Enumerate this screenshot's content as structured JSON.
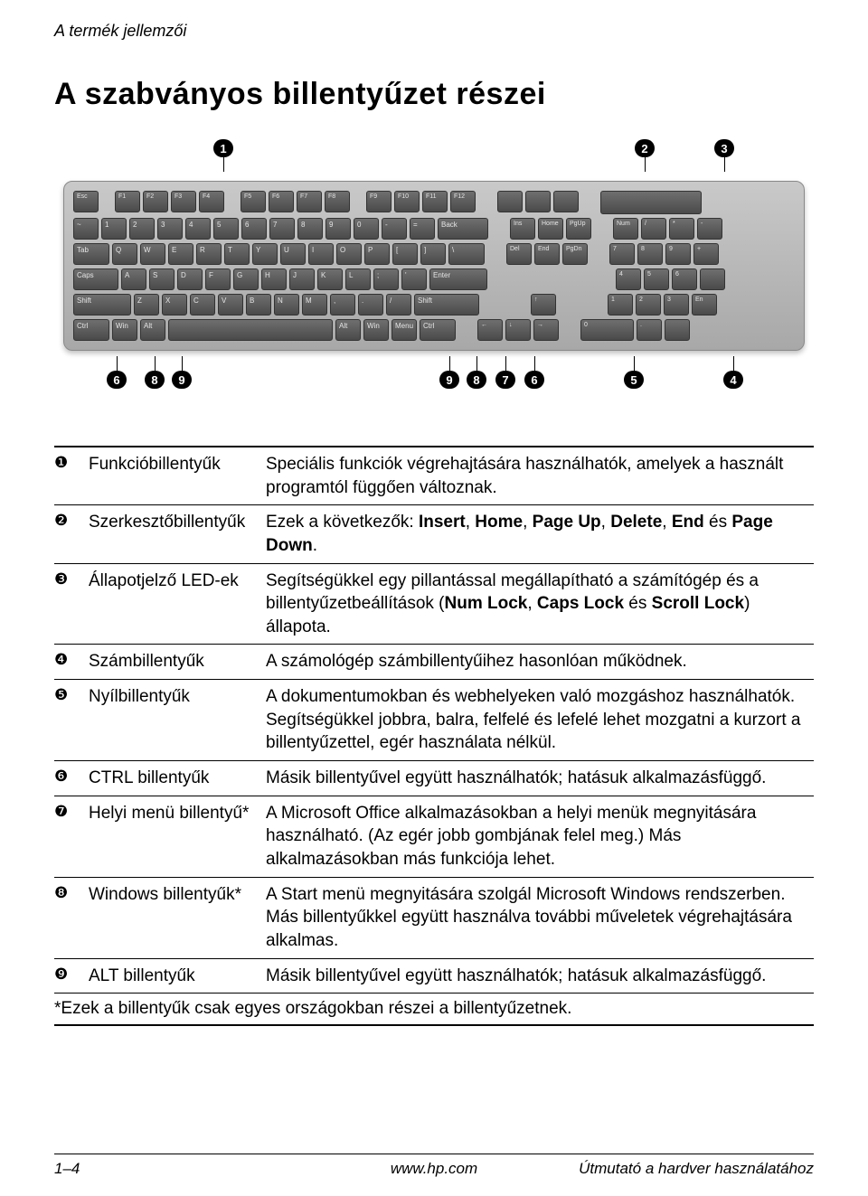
{
  "header": "A termék jellemzői",
  "title": "A szabványos billentyűzet részei",
  "diagram": {
    "top_callouts": [
      "1",
      "2",
      "3"
    ],
    "bottom_callouts": [
      "6",
      "8",
      "9",
      "9",
      "8",
      "7",
      "6",
      "5",
      "4"
    ],
    "colors": {
      "keyboard_bg_top": "#c9c9c9",
      "keyboard_bg_bottom": "#a8a8a8",
      "key_bg_top": "#6f6f6f",
      "key_bg_bottom": "#4a4a4a",
      "key_border": "#333333",
      "bubble_bg": "#000000",
      "bubble_fg": "#ffffff"
    },
    "rows": {
      "fn": [
        "Esc",
        "F1",
        "F2",
        "F3",
        "F4",
        "F5",
        "F6",
        "F7",
        "F8",
        "F9",
        "F10",
        "F11",
        "F12"
      ],
      "r1": [
        "~",
        "1",
        "2",
        "3",
        "4",
        "5",
        "6",
        "7",
        "8",
        "9",
        "0",
        "-",
        "=",
        "Back"
      ],
      "r2": [
        "Tab",
        "Q",
        "W",
        "E",
        "R",
        "T",
        "Y",
        "U",
        "I",
        "O",
        "P",
        "[",
        "]",
        "\\"
      ],
      "r3": [
        "Caps",
        "A",
        "S",
        "D",
        "F",
        "G",
        "H",
        "J",
        "K",
        "L",
        ";",
        "'",
        "Enter"
      ],
      "r4": [
        "Shift",
        "Z",
        "X",
        "C",
        "V",
        "B",
        "N",
        "M",
        ",",
        ".",
        "/",
        "Shift"
      ],
      "r5": [
        "Ctrl",
        "Win",
        "Alt",
        "",
        "Alt",
        "Win",
        "Menu",
        "Ctrl"
      ],
      "nav1": [
        "Ins",
        "Home",
        "PgUp"
      ],
      "nav2": [
        "Del",
        "End",
        "PgDn"
      ],
      "arr": [
        "←",
        "↑",
        "↓",
        "→"
      ],
      "num1": [
        "Num",
        "/",
        "*",
        "-"
      ],
      "num2": [
        "7",
        "8",
        "9",
        "+"
      ],
      "num3": [
        "4",
        "5",
        "6"
      ],
      "num4": [
        "1",
        "2",
        "3",
        "En"
      ],
      "num5": [
        "0",
        ".",
        ""
      ]
    }
  },
  "table": {
    "rows": [
      {
        "num": "❶",
        "name": "Funkcióbillentyűk",
        "desc_parts": [
          {
            "t": "Speciális funkciók végrehajtására használhatók, amelyek a használt programtól függően változnak."
          }
        ]
      },
      {
        "num": "❷",
        "name": "Szerkesztőbillentyűk",
        "desc_parts": [
          {
            "t": "Ezek a következők: "
          },
          {
            "b": "Insert"
          },
          {
            "t": ", "
          },
          {
            "b": "Home"
          },
          {
            "t": ", "
          },
          {
            "b": "Page Up"
          },
          {
            "t": ", "
          },
          {
            "b": "Delete"
          },
          {
            "t": ", "
          },
          {
            "b": "End"
          },
          {
            "t": " és "
          },
          {
            "b": "Page Down"
          },
          {
            "t": "."
          }
        ]
      },
      {
        "num": "❸",
        "name": "Állapotjelző LED-ek",
        "desc_parts": [
          {
            "t": "Segítségükkel egy pillantással megállapítható a számítógép és a billentyűzetbeállítások ("
          },
          {
            "b": "Num Lock"
          },
          {
            "t": ", "
          },
          {
            "b": "Caps Lock"
          },
          {
            "t": " és "
          },
          {
            "b": "Scroll Lock"
          },
          {
            "t": ") állapota."
          }
        ]
      },
      {
        "num": "❹",
        "name": "Számbillentyűk",
        "desc_parts": [
          {
            "t": "A számológép számbillentyűihez hasonlóan működnek."
          }
        ]
      },
      {
        "num": "❺",
        "name": "Nyílbillentyűk",
        "desc_parts": [
          {
            "t": "A dokumentumokban és webhelyeken való mozgáshoz használhatók. Segítségükkel jobbra, balra, felfelé és lefelé lehet mozgatni a kurzort a billentyűzettel, egér használata nélkül."
          }
        ]
      },
      {
        "num": "❻",
        "name": "CTRL billentyűk",
        "desc_parts": [
          {
            "t": "Másik billentyűvel együtt használhatók; hatásuk alkalmazásfüggő."
          }
        ]
      },
      {
        "num": "❼",
        "name": "Helyi menü billentyű*",
        "desc_parts": [
          {
            "t": "A Microsoft Office alkalmazásokban a helyi menük megnyitására használható. (Az egér jobb gombjának felel meg.) Más alkalmazásokban más funkciója lehet."
          }
        ]
      },
      {
        "num": "❽",
        "name": "Windows billentyűk*",
        "desc_parts": [
          {
            "t": "A Start menü megnyitására szolgál Microsoft Windows rendszerben. Más billentyűkkel együtt használva további műveletek végrehajtására alkalmas."
          }
        ]
      },
      {
        "num": "❾",
        "name": "ALT billentyűk",
        "desc_parts": [
          {
            "t": "Másik billentyűvel együtt használhatók; hatásuk alkalmazásfüggő."
          }
        ]
      }
    ],
    "footnote": "*Ezek a billentyűk csak egyes országokban részei a billentyűzetnek."
  },
  "footer": {
    "left": "1–4",
    "center": "www.hp.com",
    "right": "Útmutató a hardver használatához"
  }
}
